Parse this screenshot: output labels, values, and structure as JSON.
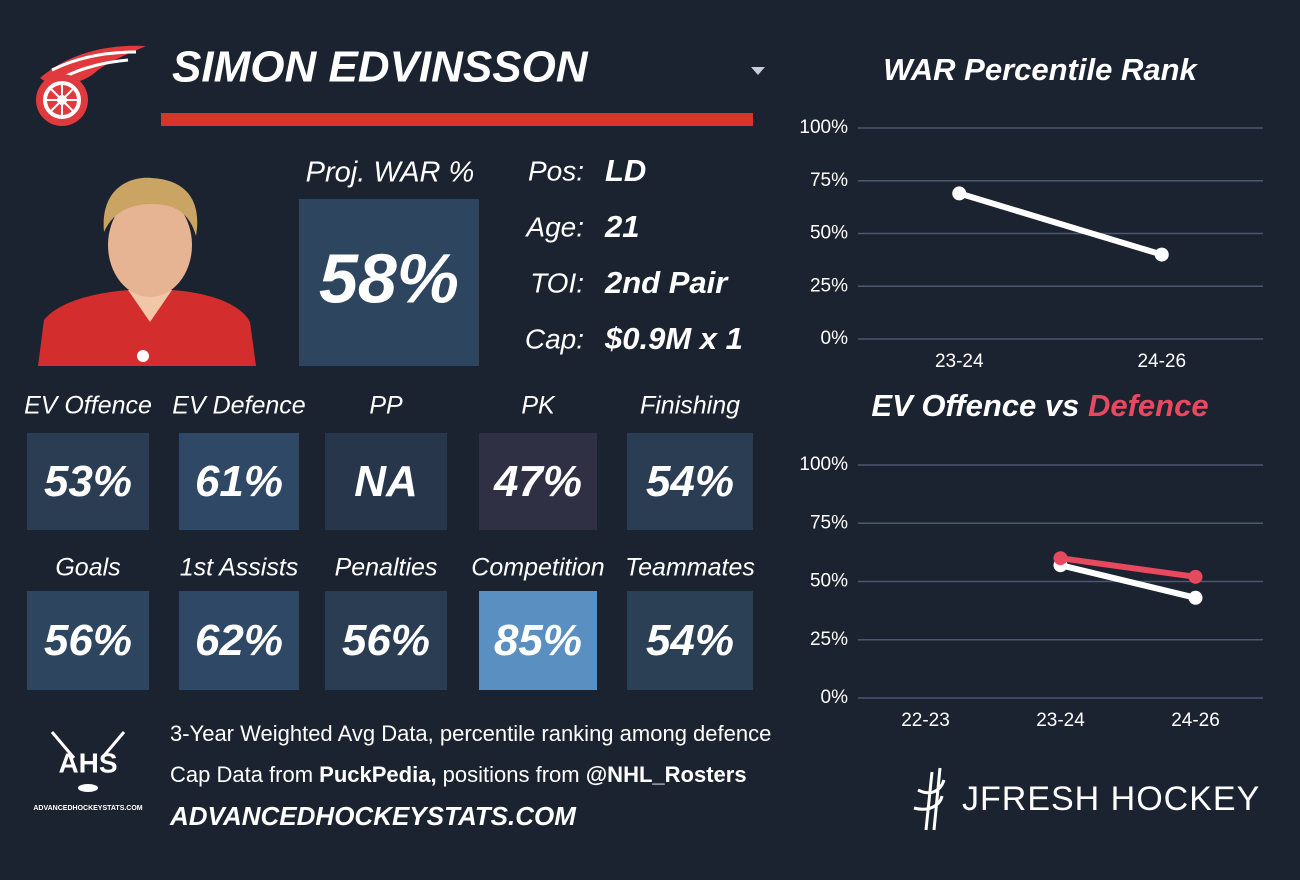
{
  "header": {
    "name": "SIMON EDVINSSON"
  },
  "summary": {
    "proj_label": "Proj. WAR %",
    "proj_value": "58%",
    "fields": [
      {
        "label": "Pos:",
        "value": "LD"
      },
      {
        "label": "Age:",
        "value": "21"
      },
      {
        "label": "TOI:",
        "value": "2nd Pair"
      },
      {
        "label": "Cap:",
        "value": "$0.9M x 1"
      }
    ]
  },
  "tiles": [
    {
      "label": "EV Offence",
      "value": "53%",
      "color": "#2b3d52"
    },
    {
      "label": "EV Defence",
      "value": "61%",
      "color": "#2f4865"
    },
    {
      "label": "PP",
      "value": "NA",
      "color": "#27364a"
    },
    {
      "label": "PK",
      "value": "47%",
      "color": "#2f3043"
    },
    {
      "label": "Finishing",
      "value": "54%",
      "color": "#2b3d52"
    },
    {
      "label": "Goals",
      "value": "56%",
      "color": "#2e4560"
    },
    {
      "label": "1st Assists",
      "value": "62%",
      "color": "#2f4865"
    },
    {
      "label": "Penalties",
      "value": "56%",
      "color": "#2b3d52"
    },
    {
      "label": "Competition",
      "value": "85%",
      "color": "#5a8fc2"
    },
    {
      "label": "Teammates",
      "value": "54%",
      "color": "#2c4055"
    }
  ],
  "footer": {
    "line1": "3-Year Weighted Avg Data, percentile ranking among defence",
    "line2": [
      "Cap Data from ",
      "PuckPedia,",
      " positions from ",
      "@NHL_Rosters"
    ],
    "site": "ADVANCEDHOCKEYSTATS.COM",
    "logo_text": "AHS",
    "logo_sub": "ADVANCEDHOCKEYSTATS.COM",
    "brand": "JFRESH HOCKEY"
  },
  "chart_data": [
    {
      "type": "line",
      "title": "WAR Percentile Rank",
      "categories": [
        "23-24",
        "24-26"
      ],
      "series": [
        {
          "color": "#ffffff",
          "values": [
            69,
            40
          ]
        }
      ],
      "ylim": [
        0,
        100
      ],
      "yticks": [
        {
          "value": 0,
          "label": "0%"
        },
        {
          "value": 25,
          "label": "25%"
        },
        {
          "value": 50,
          "label": "50%"
        },
        {
          "value": 75,
          "label": "75%"
        },
        {
          "value": 100,
          "label": "100%"
        }
      ],
      "grid": true
    },
    {
      "type": "line",
      "title": "EV Offence vs ",
      "title_highlight": "Defence",
      "highlight_color": "#e8495e",
      "categories": [
        "22-23",
        "23-24",
        "24-26"
      ],
      "series": [
        {
          "color": "#ffffff",
          "values": [
            null,
            57,
            43
          ]
        },
        {
          "color": "#e8495e",
          "values": [
            null,
            60,
            52
          ]
        }
      ],
      "ylim": [
        0,
        100
      ],
      "yticks": [
        {
          "value": 0,
          "label": "0%"
        },
        {
          "value": 25,
          "label": "25%"
        },
        {
          "value": 50,
          "label": "50%"
        },
        {
          "value": 75,
          "label": "75%"
        },
        {
          "value": 100,
          "label": "100%"
        }
      ],
      "grid": true
    }
  ]
}
